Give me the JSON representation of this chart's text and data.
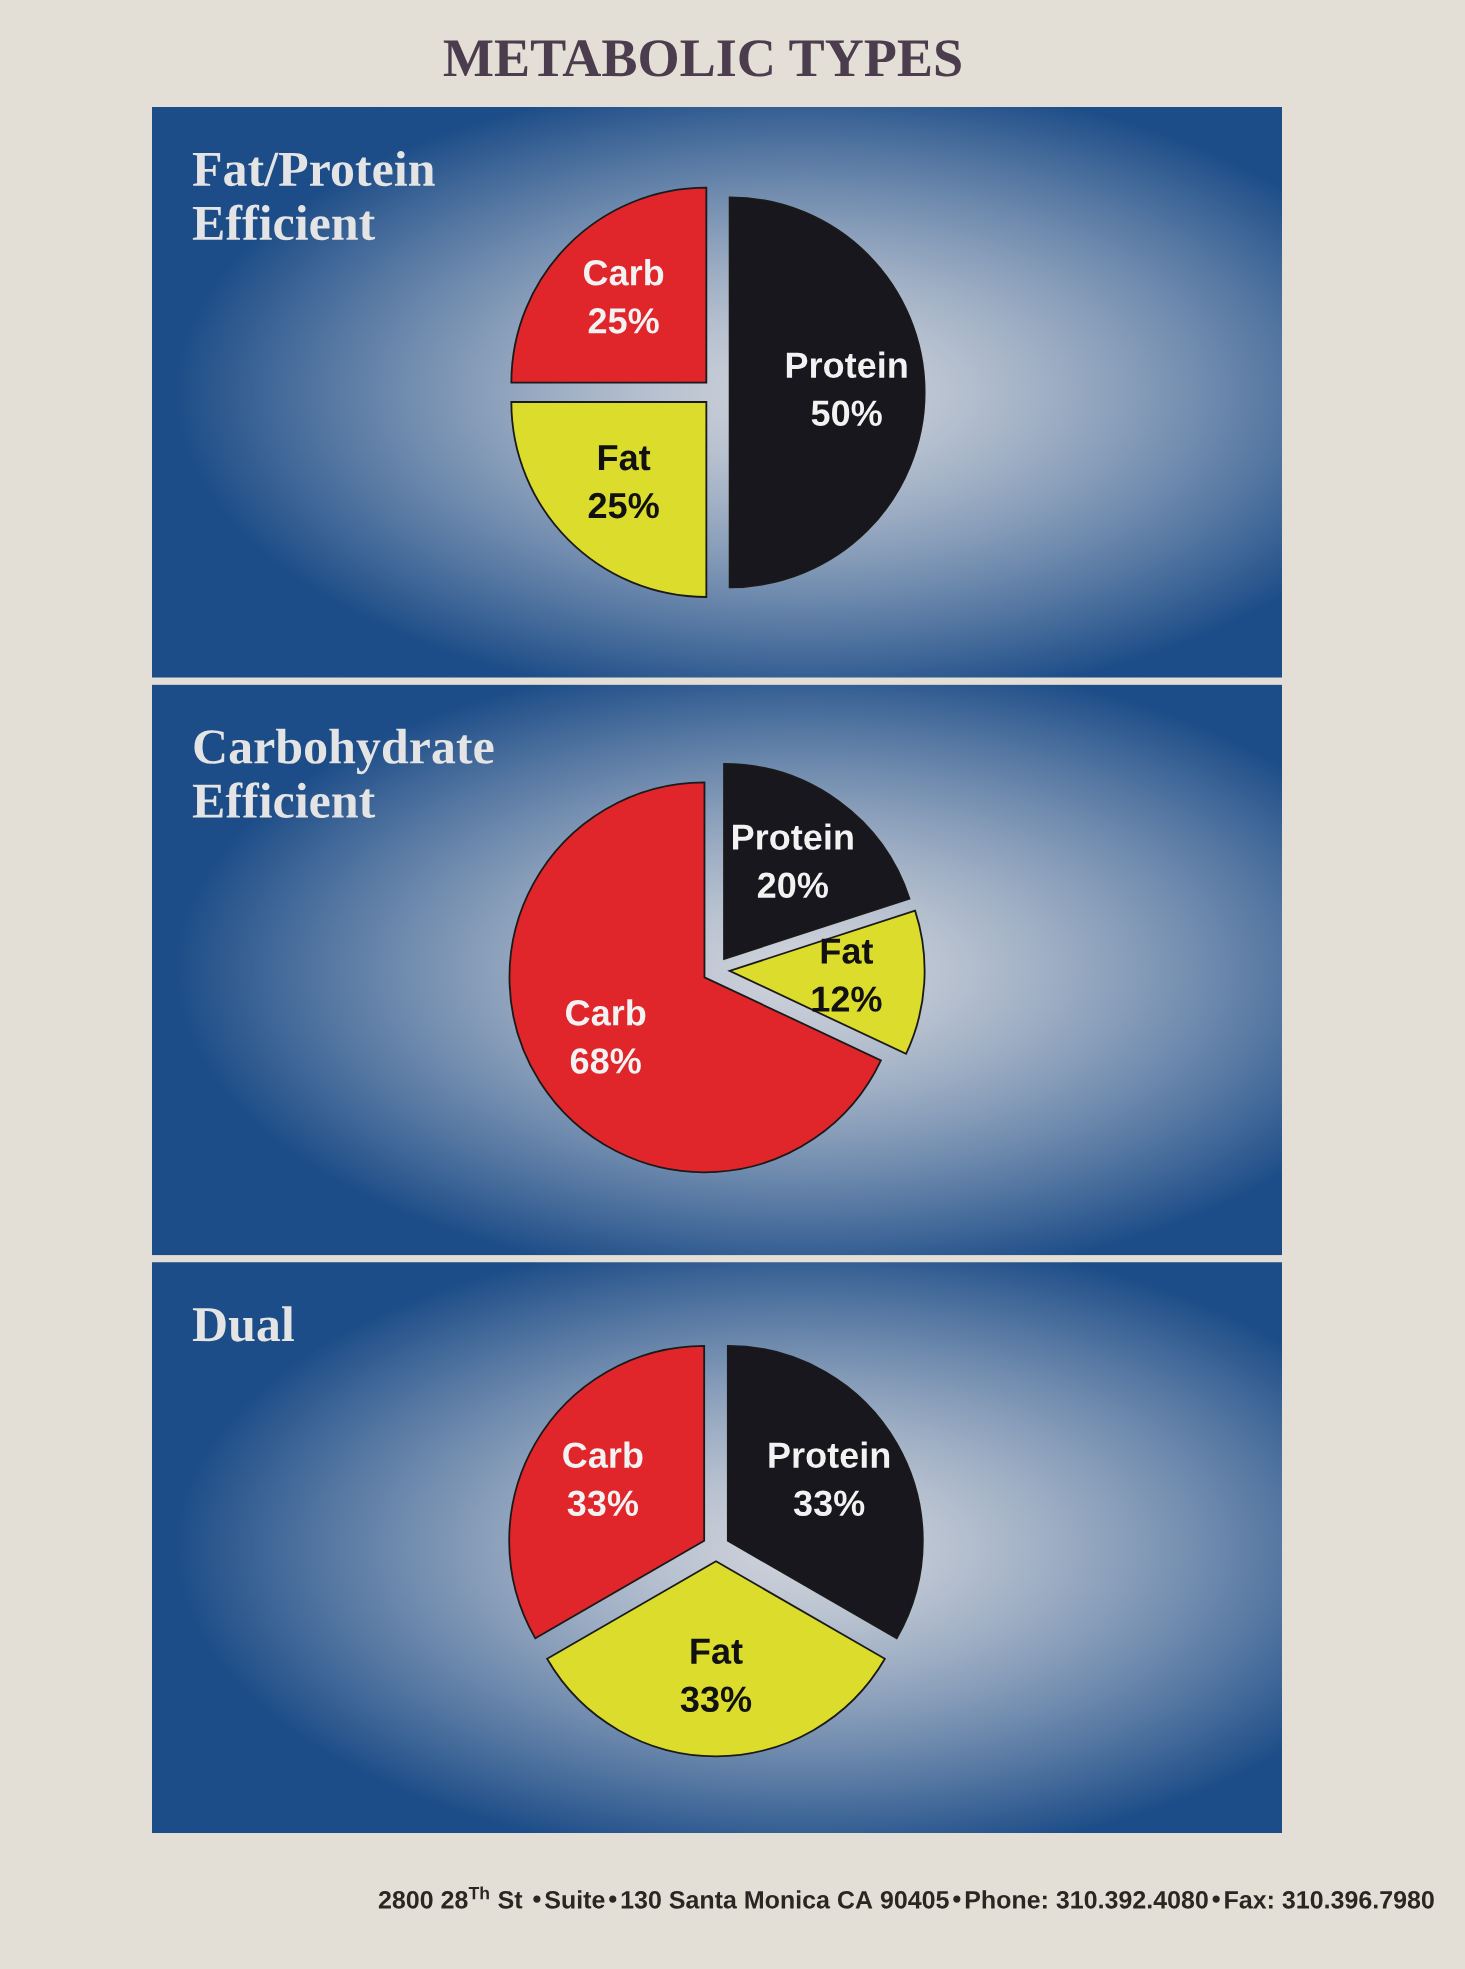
{
  "chart_data": [
    {
      "type": "pie",
      "title": "Fat/Protein\nEfficient",
      "categories": [
        "Carb",
        "Fat",
        "Protein"
      ],
      "values": [
        25,
        25,
        50
      ],
      "value_labels": [
        "25%",
        "25%",
        "50%"
      ],
      "colors": [
        "#e1262b",
        "#dcdc2c",
        "#18171d"
      ],
      "annotations": [
        "METABOLIC TYPES"
      ]
    },
    {
      "type": "pie",
      "title": "Carbohydrate\nEfficient",
      "categories": [
        "Carb",
        "Fat",
        "Protein"
      ],
      "values": [
        68,
        12,
        20
      ],
      "value_labels": [
        "68%",
        "12%",
        "20%"
      ],
      "colors": [
        "#e1262b",
        "#dcdc2c",
        "#18171d"
      ]
    },
    {
      "type": "pie",
      "title": "Dual",
      "categories": [
        "Carb",
        "Fat",
        "Protein"
      ],
      "values": [
        33,
        33,
        33
      ],
      "value_labels": [
        "33%",
        "33%",
        "33%"
      ],
      "colors": [
        "#e1262b",
        "#dcdc2c",
        "#18171d"
      ],
      "annotations": [
        "2800 28$^{Th}$ St •Suite•130 Santa Monica CA 90405•Phone: 310.392.4080•Fax: 310.396.7980"
      ]
    }
  ]
}
